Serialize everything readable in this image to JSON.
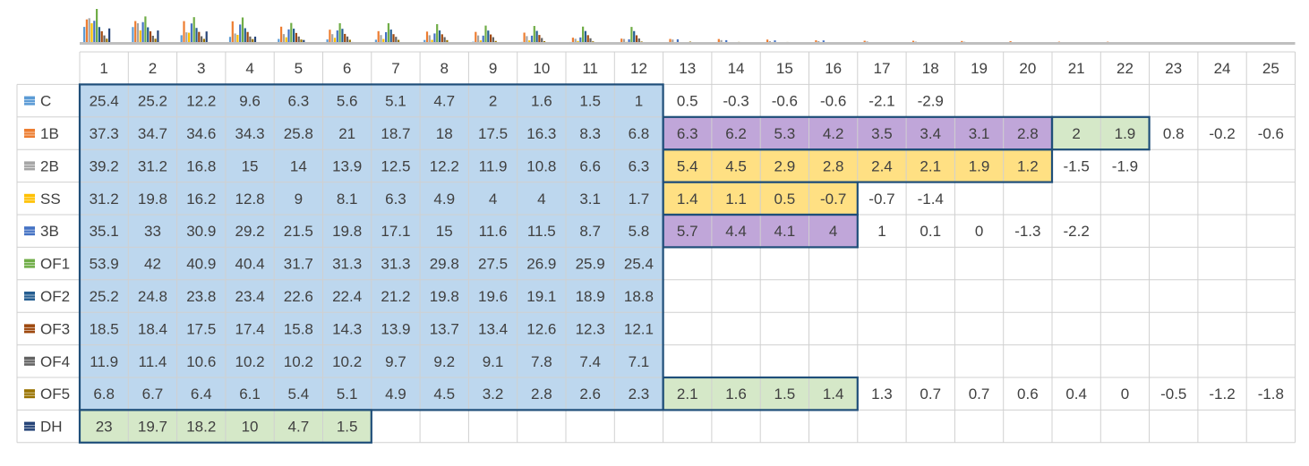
{
  "chart_data": {
    "type": "table",
    "columns": [
      1,
      2,
      3,
      4,
      5,
      6,
      7,
      8,
      9,
      10,
      11,
      12,
      13,
      14,
      15,
      16,
      17,
      18,
      19,
      20,
      21,
      22,
      23,
      24,
      25
    ],
    "rows": [
      {
        "label": "C",
        "color": "#5b9bd5",
        "values": [
          "25.4",
          "25.2",
          "12.2",
          "9.6",
          "6.3",
          "5.6",
          "5.1",
          "4.7",
          "2",
          "1.6",
          "1.5",
          "1",
          "0.5",
          "-0.3",
          "-0.6",
          "-0.6",
          "-2.1",
          "-2.9"
        ]
      },
      {
        "label": "1B",
        "color": "#ed7d31",
        "values": [
          "37.3",
          "34.7",
          "34.6",
          "34.3",
          "25.8",
          "21",
          "18.7",
          "18",
          "17.5",
          "16.3",
          "8.3",
          "6.8",
          "6.3",
          "6.2",
          "5.3",
          "4.2",
          "3.5",
          "3.4",
          "3.1",
          "2.8",
          "2",
          "1.9",
          "0.8",
          "-0.2",
          "-0.6"
        ]
      },
      {
        "label": "2B",
        "color": "#a5a5a5",
        "values": [
          "39.2",
          "31.2",
          "16.8",
          "15",
          "14",
          "13.9",
          "12.5",
          "12.2",
          "11.9",
          "10.8",
          "6.6",
          "6.3",
          "5.4",
          "4.5",
          "2.9",
          "2.8",
          "2.4",
          "2.1",
          "1.9",
          "1.2",
          "-1.5",
          "-1.9"
        ]
      },
      {
        "label": "SS",
        "color": "#ffc000",
        "values": [
          "31.2",
          "19.8",
          "16.2",
          "12.8",
          "9",
          "8.1",
          "6.3",
          "4.9",
          "4",
          "4",
          "3.1",
          "1.7",
          "1.4",
          "1.1",
          "0.5",
          "-0.7",
          "-0.7",
          "-1.4"
        ]
      },
      {
        "label": "3B",
        "color": "#4472c4",
        "values": [
          "35.1",
          "33",
          "30.9",
          "29.2",
          "21.5",
          "19.8",
          "17.1",
          "15",
          "11.6",
          "11.5",
          "8.7",
          "5.8",
          "5.7",
          "4.4",
          "4.1",
          "4",
          "1",
          "0.1",
          "0",
          "-1.3",
          "-2.2"
        ]
      },
      {
        "label": "OF1",
        "color": "#70ad47",
        "values": [
          "53.9",
          "42",
          "40.9",
          "40.4",
          "31.7",
          "31.3",
          "31.3",
          "29.8",
          "27.5",
          "26.9",
          "25.9",
          "25.4"
        ]
      },
      {
        "label": "OF2",
        "color": "#255e91",
        "values": [
          "25.2",
          "24.8",
          "23.8",
          "23.4",
          "22.6",
          "22.4",
          "21.2",
          "19.8",
          "19.6",
          "19.1",
          "18.9",
          "18.8"
        ]
      },
      {
        "label": "OF3",
        "color": "#9e480e",
        "values": [
          "18.5",
          "18.4",
          "17.5",
          "17.4",
          "15.8",
          "14.3",
          "13.9",
          "13.7",
          "13.4",
          "12.6",
          "12.3",
          "12.1"
        ]
      },
      {
        "label": "OF4",
        "color": "#636363",
        "values": [
          "11.9",
          "11.4",
          "10.6",
          "10.2",
          "10.2",
          "10.2",
          "9.7",
          "9.2",
          "9.1",
          "7.8",
          "7.4",
          "7.1"
        ]
      },
      {
        "label": "OF5",
        "color": "#997300",
        "values": [
          "6.8",
          "6.7",
          "6.4",
          "6.1",
          "5.4",
          "5.1",
          "4.9",
          "4.5",
          "3.2",
          "2.8",
          "2.6",
          "2.3",
          "2.1",
          "1.6",
          "1.5",
          "1.4",
          "1.3",
          "0.7",
          "0.7",
          "0.6",
          "0.4",
          "0",
          "-0.5",
          "-1.2",
          "-1.8"
        ]
      },
      {
        "label": "DH",
        "color": "#264478",
        "values": [
          "23",
          "19.7",
          "18.2",
          "10",
          "4.7",
          "1.5"
        ]
      }
    ],
    "highlight_groups": [
      {
        "color": "blue",
        "fill": "#bdd7ee",
        "cells": [
          [
            0,
            0,
            11
          ],
          [
            1,
            0,
            11
          ],
          [
            2,
            0,
            11
          ],
          [
            3,
            0,
            11
          ],
          [
            4,
            0,
            11
          ],
          [
            5,
            0,
            11
          ],
          [
            6,
            0,
            11
          ],
          [
            7,
            0,
            11
          ],
          [
            8,
            0,
            11
          ],
          [
            9,
            0,
            11
          ]
        ]
      },
      {
        "color": "purple",
        "fill": "#c0a6d9",
        "cells": [
          [
            1,
            12,
            19
          ],
          [
            4,
            12,
            15
          ]
        ]
      },
      {
        "color": "yellow",
        "fill": "#ffe083",
        "cells": [
          [
            2,
            12,
            19
          ],
          [
            3,
            12,
            15
          ]
        ]
      },
      {
        "color": "green",
        "fill": "#d5e8c8",
        "cells": [
          [
            1,
            20,
            21
          ],
          [
            9,
            12,
            15
          ],
          [
            10,
            0,
            5
          ]
        ]
      }
    ],
    "sparkline_style": "grouped-bars-per-column"
  }
}
